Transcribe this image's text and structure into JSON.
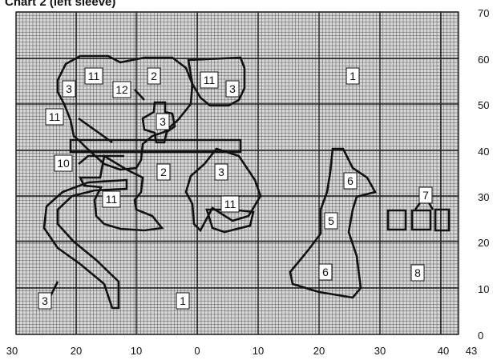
{
  "title": "Chart 2 (left sleeve)",
  "x_ticks": [
    "30",
    "20",
    "10",
    "0",
    "10",
    "20",
    "30",
    "40",
    "43"
  ],
  "y_ticks": [
    "0",
    "10",
    "20",
    "30",
    "40",
    "50",
    "60",
    "70"
  ],
  "labels": [
    {
      "id": "region-1-top-right",
      "text": "1"
    },
    {
      "id": "region-1-bottom",
      "text": "1"
    },
    {
      "id": "region-2-top",
      "text": "2"
    },
    {
      "id": "region-2-middle",
      "text": "2"
    },
    {
      "id": "region-3-left",
      "text": "3"
    },
    {
      "id": "region-3-right",
      "text": "3"
    },
    {
      "id": "region-3-center",
      "text": "3"
    },
    {
      "id": "region-3-mid-right",
      "text": "3"
    },
    {
      "id": "region-3-bottom-left",
      "text": "3"
    },
    {
      "id": "region-11-top-left",
      "text": "11"
    },
    {
      "id": "region-11-top-right",
      "text": "11"
    },
    {
      "id": "region-11-left",
      "text": "11"
    },
    {
      "id": "region-11-center",
      "text": "11"
    },
    {
      "id": "region-11-bottom",
      "text": "11"
    },
    {
      "id": "region-12",
      "text": "12"
    },
    {
      "id": "region-10",
      "text": "10"
    },
    {
      "id": "region-6-top",
      "text": "6"
    },
    {
      "id": "region-5",
      "text": "5"
    },
    {
      "id": "region-6-bottom",
      "text": "6"
    },
    {
      "id": "region-7",
      "text": "7"
    },
    {
      "id": "region-8",
      "text": "8"
    }
  ]
}
